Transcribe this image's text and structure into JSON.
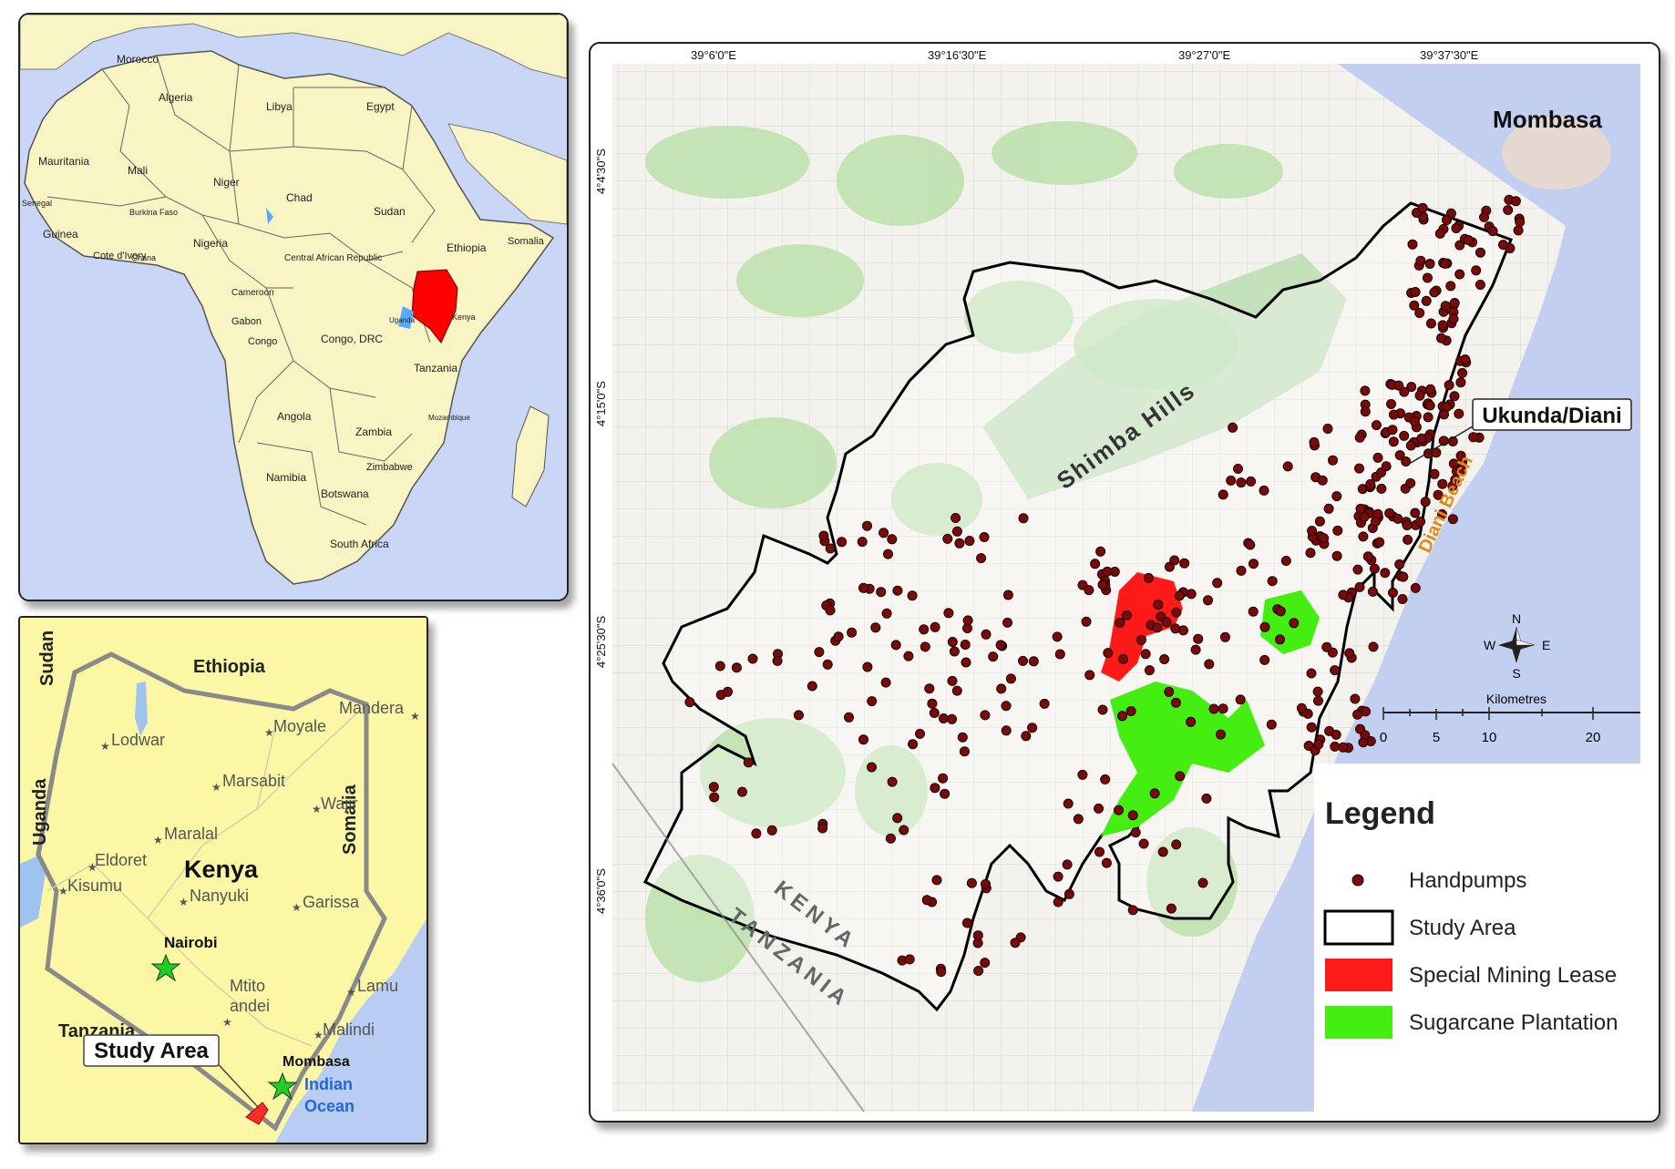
{
  "africa_map": {
    "countries": [
      "Morocco",
      "Algeria",
      "Libya",
      "Egypt",
      "Mauritania",
      "Mali",
      "Niger",
      "Chad",
      "Sudan",
      "Senegal",
      "Guinea",
      "Burkina Faso",
      "Cote d'Ivory",
      "Ghana",
      "Nigeria",
      "Central African Republic",
      "Ethiopia",
      "Somalia",
      "Cameroon",
      "Gabon",
      "Congo",
      "Congo, DRC",
      "Uganda",
      "Kenya",
      "Tanzania",
      "Angola",
      "Zambia",
      "Mozambique",
      "Zimbabwe",
      "Namibia",
      "Botswana",
      "South Africa"
    ],
    "highlight": "Kenya",
    "highlight_color": "#ff0000"
  },
  "kenya_map": {
    "neighbors": [
      "Sudan",
      "Ethiopia",
      "Uganda",
      "Somalia",
      "Tanzania"
    ],
    "country": "Kenya",
    "towns": [
      "Lodwar",
      "Moyale",
      "Mandera",
      "Marsabit",
      "Wajir",
      "Maralal",
      "Eldoret",
      "Kisumu",
      "Nanyuki",
      "Garissa",
      "Mtito andei",
      "Lamu",
      "Malindi"
    ],
    "capital": "Nairobi",
    "city": "Mombasa",
    "ocean": "Indian Ocean",
    "callout": "Study Area",
    "study_color": "#ff2a2a",
    "star_color": "#22cc22"
  },
  "main_map": {
    "lon_ticks": [
      "39°6'0\"E",
      "39°16'30\"E",
      "39°27'0\"E",
      "39°37'30\"E"
    ],
    "lat_ticks": [
      "4°4'30\"S",
      "4°15'0\"S",
      "4°25'30\"S",
      "4°36'0\"S"
    ],
    "places": {
      "mombasa": "Mombasa",
      "shimba": "Shimba Hills",
      "ukunda": "Ukunda/Diani",
      "diani": "Diani Beach",
      "kenya": "KENYA",
      "tanzania": "TANZANIA"
    },
    "north_arrow": {
      "n": "N",
      "s": "S",
      "e": "E",
      "w": "W"
    },
    "scale": {
      "title": "Kilometres",
      "ticks": [
        "0",
        "5",
        "10",
        "20"
      ]
    },
    "legend": {
      "title": "Legend",
      "items": [
        {
          "label": "Handpumps",
          "symbol": "dot",
          "color": "#7a0a0a"
        },
        {
          "label": "Study Area",
          "symbol": "outline",
          "color": "#000000"
        },
        {
          "label": "Special Mining Lease",
          "symbol": "fill",
          "color": "#ff1a1a"
        },
        {
          "label": "Sugarcane Plantation",
          "symbol": "fill",
          "color": "#44ee11"
        }
      ]
    }
  }
}
